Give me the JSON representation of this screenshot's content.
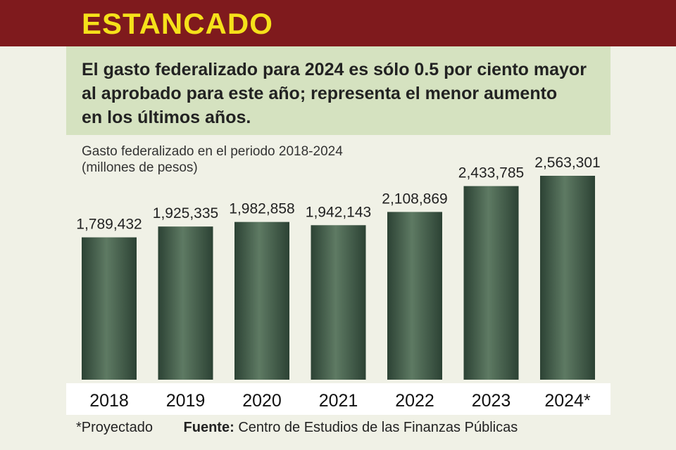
{
  "header": {
    "title": "ESTANCADO"
  },
  "subtitle": {
    "lines": [
      "El gasto federalizado para 2024 es sólo 0.5 por ciento mayor",
      "al aprobado para este año; representa el menor aumento",
      "en los últimos años."
    ]
  },
  "chart_data": {
    "type": "bar",
    "title": "Gasto federalizado en el periodo 2018-2024",
    "unit": "(millones de pesos)",
    "categories": [
      "2018",
      "2019",
      "2020",
      "2021",
      "2022",
      "2023",
      "2024*"
    ],
    "values": [
      1789432,
      1925335,
      1982858,
      1942143,
      2108869,
      2433785,
      2563301
    ],
    "value_labels": [
      "1,789,432",
      "1,925,335",
      "1,982,858",
      "1,942,143",
      "2,108,869",
      "2,433,785",
      "2,563,301"
    ],
    "ylim": [
      0,
      2563301
    ],
    "grid": false,
    "legend": "none",
    "bar_color": "#3f5a47"
  },
  "footer": {
    "note": "*Proyectado",
    "source_label": "Fuente:",
    "source_text": "Centro de Estudios de las Finanzas Públicas"
  }
}
